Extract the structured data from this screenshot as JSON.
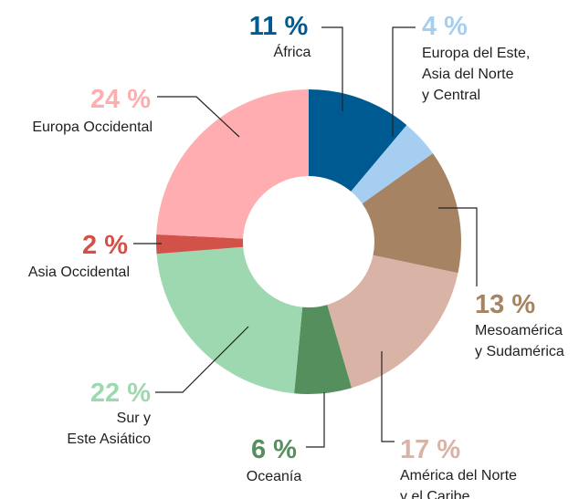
{
  "chart_data": {
    "type": "donut",
    "categories": [
      "África",
      "Europa del Este,\nAsia del Norte\ny Central",
      "Mesoamérica\ny Sudamérica",
      "América del Norte\ny el Caribe",
      "Oceanía",
      "Sur y\nEste Asiático",
      "Asia Occidental",
      "Europa Occidental"
    ],
    "values": [
      11,
      4,
      13,
      17,
      6,
      22,
      2,
      24
    ],
    "value_labels": [
      "11 %",
      "4 %",
      "13 %",
      "17 %",
      "6 %",
      "22 %",
      "2 %",
      "24 %"
    ],
    "colors": [
      "#005a92",
      "#a6cef0",
      "#a68463",
      "#d9b3a6",
      "#568f5e",
      "#9dd8b0",
      "#d2524a",
      "#ffadb0"
    ]
  }
}
